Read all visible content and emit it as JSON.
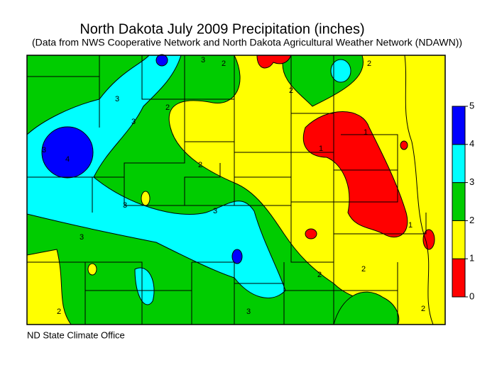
{
  "title": "North Dakota July 2009 Precipitation (inches)",
  "subtitle": "(Data from NWS Cooperative Network and North Dakota Agricultural Weather Network (NDAWN))",
  "credit": "ND State Climate Office",
  "legend": {
    "ticks": [
      0,
      1,
      2,
      3,
      4,
      5
    ],
    "colors": [
      "#ff0000",
      "#ffff00",
      "#00cc00",
      "#00ffff",
      "#0000ff"
    ]
  },
  "contour_labels": [
    3,
    2,
    2,
    3,
    4,
    3,
    2,
    3,
    3,
    3,
    3,
    2,
    2,
    1,
    1,
    2,
    2,
    2,
    3,
    2,
    1
  ]
}
